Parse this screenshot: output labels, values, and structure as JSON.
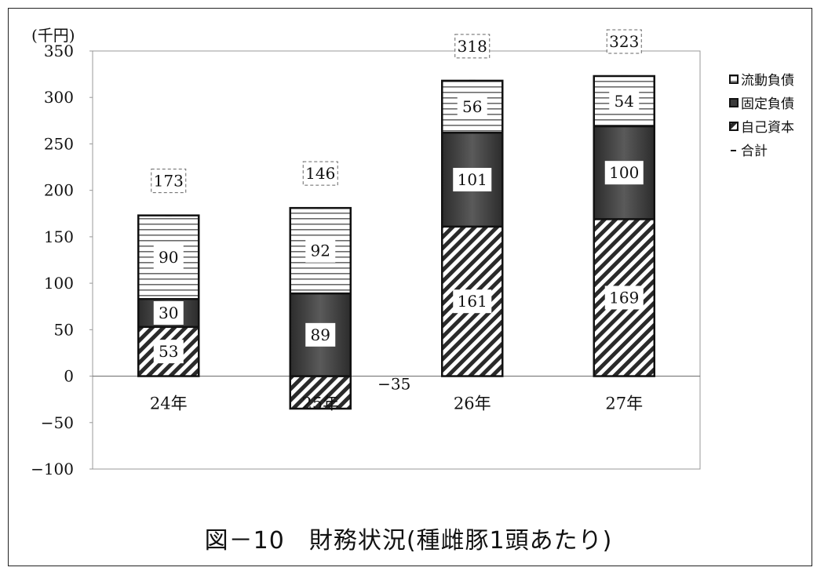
{
  "caption": "図－10　財務状況(種雌豚1頭あたり)",
  "chart_data": {
    "type": "bar",
    "stacked": true,
    "unit_label": "(千円)",
    "categories": [
      "24年",
      "25年",
      "26年",
      "27年"
    ],
    "ylim": [
      -100,
      350
    ],
    "yticks": [
      -100,
      -50,
      0,
      50,
      100,
      150,
      200,
      250,
      300,
      350
    ],
    "series": [
      {
        "name": "自己資本",
        "values": [
          53,
          -35,
          161,
          169
        ],
        "pattern": "diagonal-hatch",
        "color": "#222222"
      },
      {
        "name": "固定負債",
        "values": [
          30,
          89,
          101,
          100
        ],
        "pattern": "dark-gradient",
        "color": "#3a3a3a"
      },
      {
        "name": "流動負債",
        "values": [
          90,
          92,
          56,
          54
        ],
        "pattern": "horizontal-lines",
        "color": "#555555"
      }
    ],
    "totals": {
      "name": "合計",
      "values": [
        173,
        146,
        318,
        323
      ]
    },
    "legend_position": "right",
    "grid": false
  }
}
